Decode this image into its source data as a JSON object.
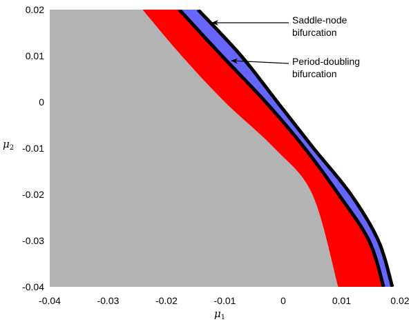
{
  "chart_data": {
    "type": "area",
    "xlabel": "μ",
    "xlabel_sub": "1",
    "ylabel": "μ",
    "ylabel_sub": "2",
    "xlim": [
      -0.04,
      0.02
    ],
    "ylim": [
      -0.04,
      0.02
    ],
    "xticks": [
      -0.04,
      -0.03,
      -0.02,
      -0.01,
      0,
      0.01,
      0.02
    ],
    "yticks": [
      0.02,
      0.01,
      0,
      -0.01,
      -0.02,
      -0.03,
      -0.04
    ],
    "xtick_labels": [
      "-0.04",
      "-0.03",
      "-0.02",
      "-0.01",
      "0",
      "0.01",
      "0.02"
    ],
    "ytick_labels": [
      "0.02",
      "0.01",
      "0",
      "-0.01",
      "-0.02",
      "-0.03",
      "-0.04"
    ],
    "grid": false,
    "colors": {
      "gray_region": "#b3b3b3",
      "red_region": "#ff0000",
      "blue_region": "#6666ff",
      "curve": "#000000"
    },
    "boundaries": {
      "gray_red": {
        "x": [
          -0.0241,
          -0.0174,
          -0.01,
          -0.0015,
          0.005,
          0.0094
        ],
        "y": [
          0.02,
          0.01,
          0,
          -0.01,
          -0.02,
          -0.04
        ]
      },
      "period_doubling": {
        "x": [
          -0.0178,
          -0.0105,
          -0.003,
          0.0037,
          0.0095,
          0.0147,
          0.0172
        ],
        "y": [
          0.02,
          0.01,
          0,
          -0.01,
          -0.02,
          -0.03,
          -0.04
        ]
      },
      "saddle_node": {
        "x": [
          -0.0146,
          -0.0072,
          -0.001,
          0.0052,
          0.0116,
          0.0163,
          0.0187
        ],
        "y": [
          0.02,
          0.01,
          0,
          -0.01,
          -0.02,
          -0.03,
          -0.04
        ]
      }
    },
    "annotations": [
      {
        "lines": [
          "Saddle-node",
          "bifurcation"
        ],
        "arrow_to": {
          "x": -0.0113,
          "y": 0.0169
        }
      },
      {
        "lines": [
          "Period-doubling",
          "bifurcation"
        ],
        "arrow_to": {
          "x": -0.0081,
          "y": 0.0088
        }
      }
    ]
  }
}
